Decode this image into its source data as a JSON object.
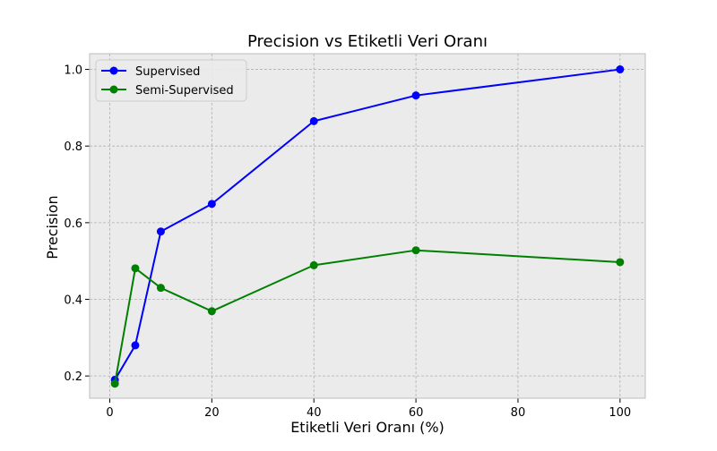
{
  "chart_data": {
    "type": "line",
    "title": "Precision vs Etiketli Veri Oranı",
    "xlabel": "Etiketli Veri Oranı (%)",
    "ylabel": "Precision",
    "x": [
      1,
      5,
      10,
      20,
      40,
      60,
      100
    ],
    "xlim": [
      -3.95,
      104.95
    ],
    "ylim": [
      0.142,
      1.041
    ],
    "xticks": [
      0,
      20,
      40,
      60,
      80,
      100
    ],
    "yticks": [
      0.2,
      0.4,
      0.6,
      0.8,
      1.0
    ],
    "xtick_labels": [
      "0",
      "20",
      "40",
      "60",
      "80",
      "100"
    ],
    "ytick_labels": [
      "0.2",
      "0.4",
      "0.6",
      "0.8",
      "1.0"
    ],
    "grid": true,
    "legend_position": "upper-left",
    "series": [
      {
        "name": "Supervised",
        "color": "#0000ff",
        "marker": "circle",
        "values": [
          0.19,
          0.28,
          0.577,
          0.649,
          0.865,
          0.932,
          1.0
        ]
      },
      {
        "name": "Semi-Supervised",
        "color": "#008000",
        "marker": "circle",
        "values": [
          0.18,
          0.481,
          0.43,
          0.369,
          0.489,
          0.528,
          0.497
        ]
      }
    ],
    "colors": {
      "plot_background": "#ebebeb",
      "grid": "#b0b0b0",
      "axes_edge": "#bcbcbc"
    }
  }
}
